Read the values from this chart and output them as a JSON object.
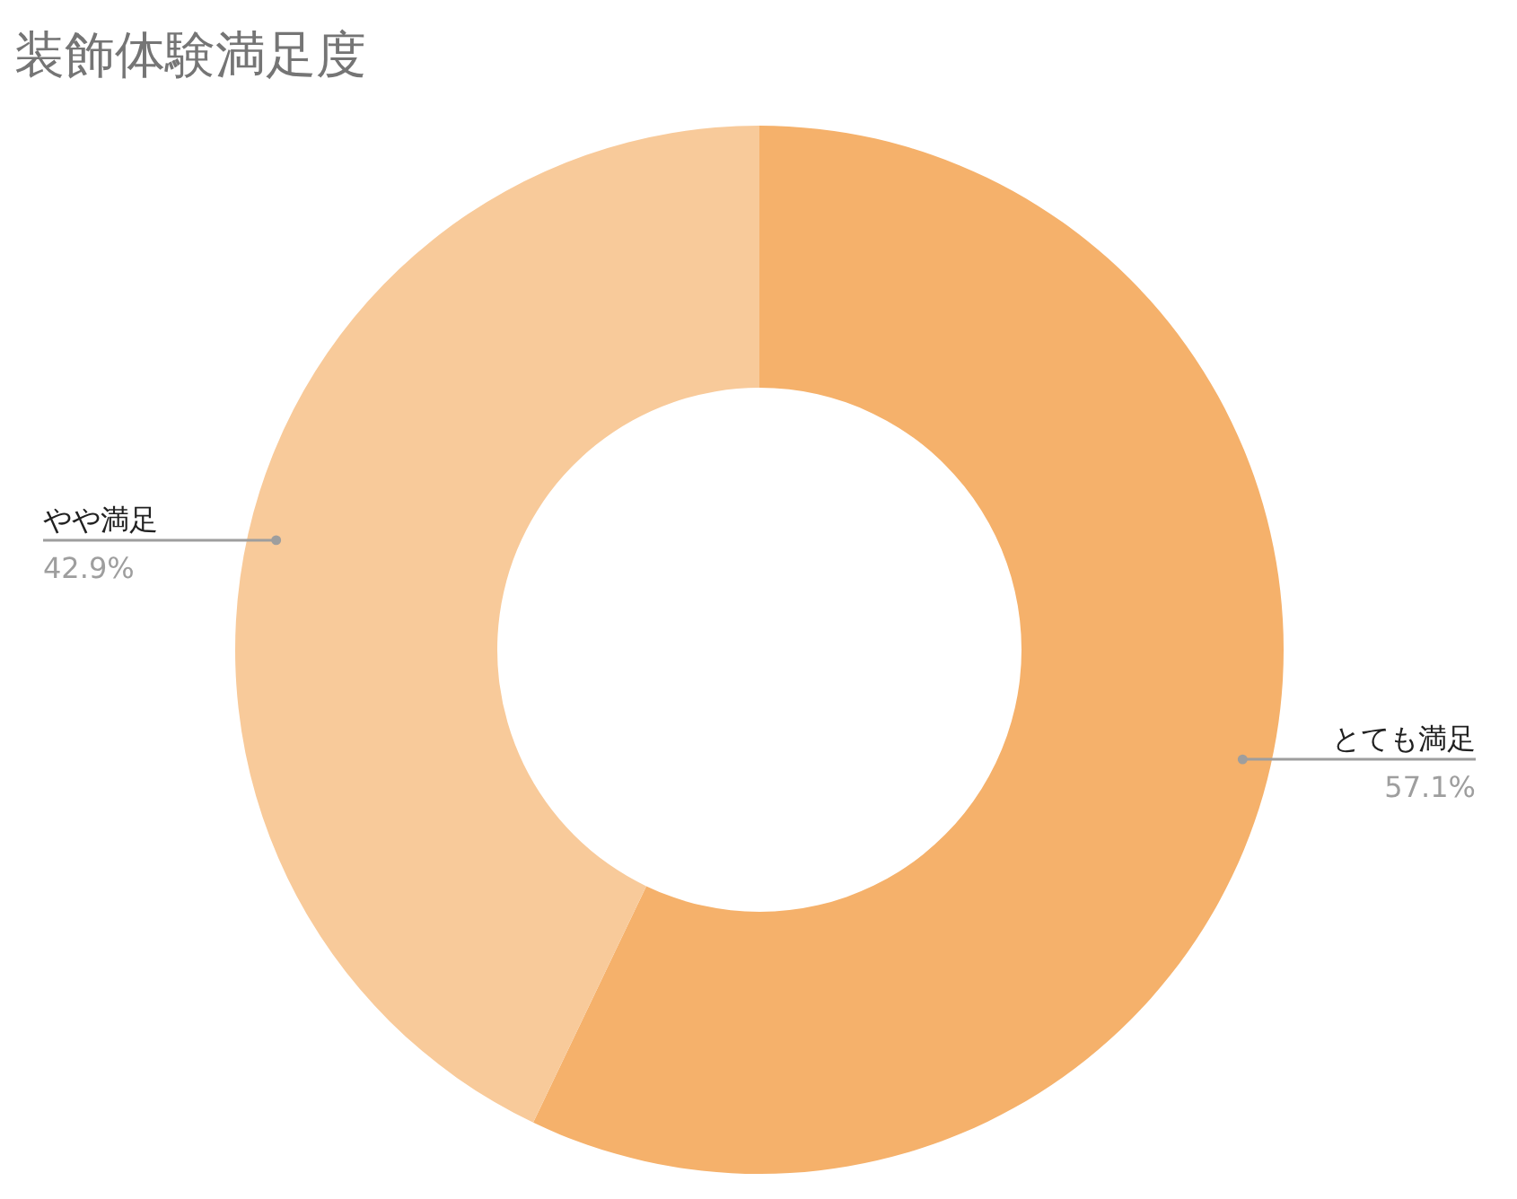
{
  "chart_data": {
    "type": "donut",
    "title": "装飾体験満足度",
    "categories": [
      "とても満足",
      "やや満足"
    ],
    "values": [
      57.1,
      42.9
    ],
    "colors": [
      "#f5b16b",
      "#f8ca9a"
    ],
    "value_labels": [
      "57.1%",
      "42.9%"
    ],
    "legend": false
  }
}
